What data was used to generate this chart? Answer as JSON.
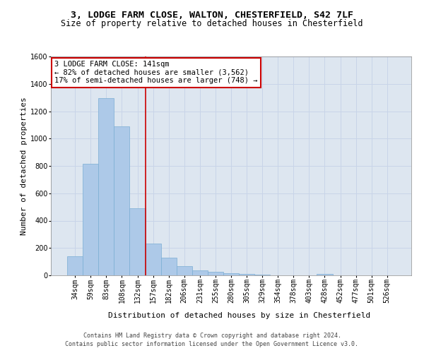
{
  "title_line1": "3, LODGE FARM CLOSE, WALTON, CHESTERFIELD, S42 7LF",
  "title_line2": "Size of property relative to detached houses in Chesterfield",
  "xlabel": "Distribution of detached houses by size in Chesterfield",
  "ylabel": "Number of detached properties",
  "categories": [
    "34sqm",
    "59sqm",
    "83sqm",
    "108sqm",
    "132sqm",
    "157sqm",
    "182sqm",
    "206sqm",
    "231sqm",
    "255sqm",
    "280sqm",
    "305sqm",
    "329sqm",
    "354sqm",
    "378sqm",
    "403sqm",
    "428sqm",
    "452sqm",
    "477sqm",
    "501sqm",
    "526sqm"
  ],
  "values": [
    140,
    815,
    1295,
    1090,
    490,
    230,
    130,
    67,
    38,
    26,
    13,
    8,
    4,
    0,
    0,
    0,
    12,
    0,
    0,
    0,
    0
  ],
  "bar_color": "#adc9e8",
  "bar_edgecolor": "#7aadd4",
  "vline_x_index": 4.5,
  "vline_color": "#cc0000",
  "annotation_text": "3 LODGE FARM CLOSE: 141sqm\n← 82% of detached houses are smaller (3,562)\n17% of semi-detached houses are larger (748) →",
  "annotation_box_facecolor": "#ffffff",
  "annotation_box_edgecolor": "#cc0000",
  "ylim_max": 1600,
  "yticks": [
    0,
    200,
    400,
    600,
    800,
    1000,
    1200,
    1400,
    1600
  ],
  "grid_color": "#c8d4e8",
  "bg_color": "#dde6f0",
  "footer_line1": "Contains HM Land Registry data © Crown copyright and database right 2024.",
  "footer_line2": "Contains public sector information licensed under the Open Government Licence v3.0.",
  "title_fontsize": 9.5,
  "subtitle_fontsize": 8.5,
  "axis_label_fontsize": 8,
  "tick_fontsize": 7,
  "annotation_fontsize": 7.5,
  "footer_fontsize": 6
}
